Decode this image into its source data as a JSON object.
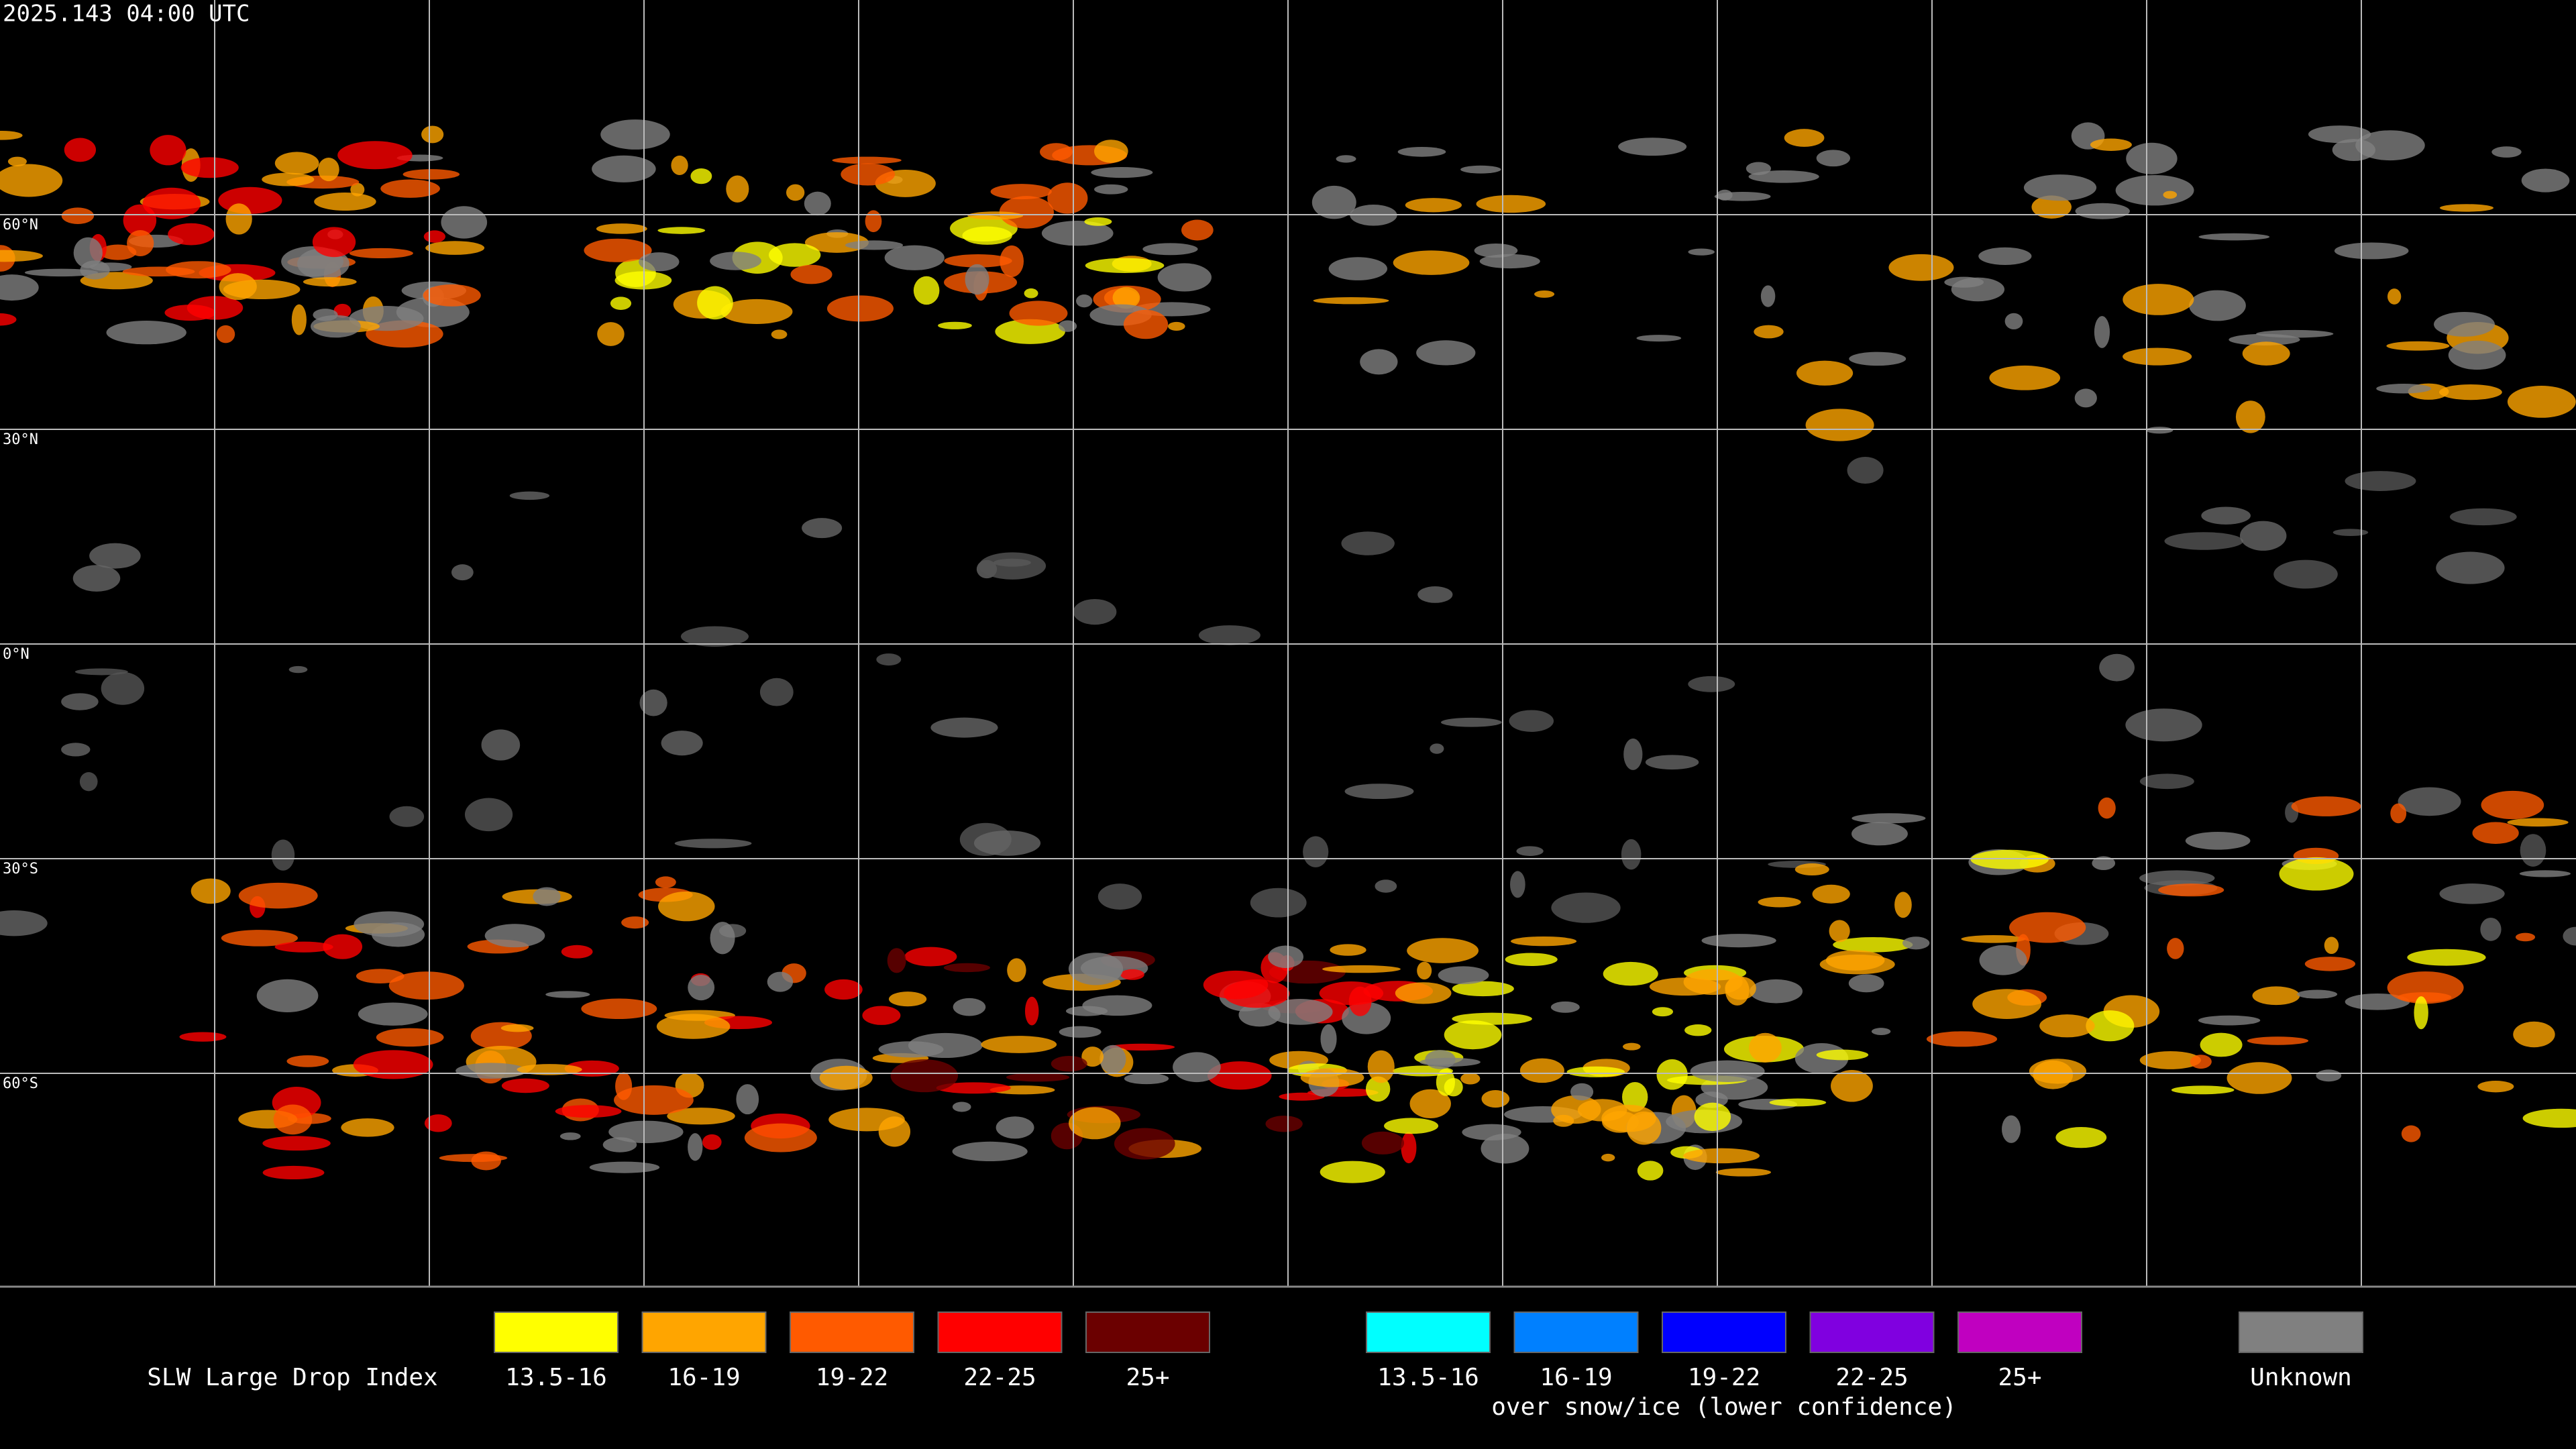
{
  "header": {
    "timestamp": "2025.143 04:00 UTC"
  },
  "map": {
    "lat_labels": [
      "60°N",
      "30°N",
      "0°N",
      "30°S",
      "60°S"
    ]
  },
  "legend": {
    "title": "SLW Large Drop Index",
    "groups": [
      {
        "items": [
          {
            "label": "13.5-16",
            "color": "#ffff00"
          },
          {
            "label": "16-19",
            "color": "#ffa500"
          },
          {
            "label": "19-22",
            "color": "#ff5a00"
          },
          {
            "label": "22-25",
            "color": "#ff0000"
          },
          {
            "label": "25+",
            "color": "#6b0000"
          }
        ]
      },
      {
        "items": [
          {
            "label": "13.5-16",
            "color": "#00ffff"
          },
          {
            "label": "16-19",
            "color": "#0080ff"
          },
          {
            "label": "19-22",
            "color": "#0000ff"
          },
          {
            "label": "22-25",
            "color": "#8000e0"
          },
          {
            "label": "25+",
            "color": "#c000c0"
          }
        ],
        "caption": "over snow/ice (lower confidence)"
      },
      {
        "items": [
          {
            "label": "Unknown",
            "color": "#808080"
          }
        ]
      }
    ]
  }
}
